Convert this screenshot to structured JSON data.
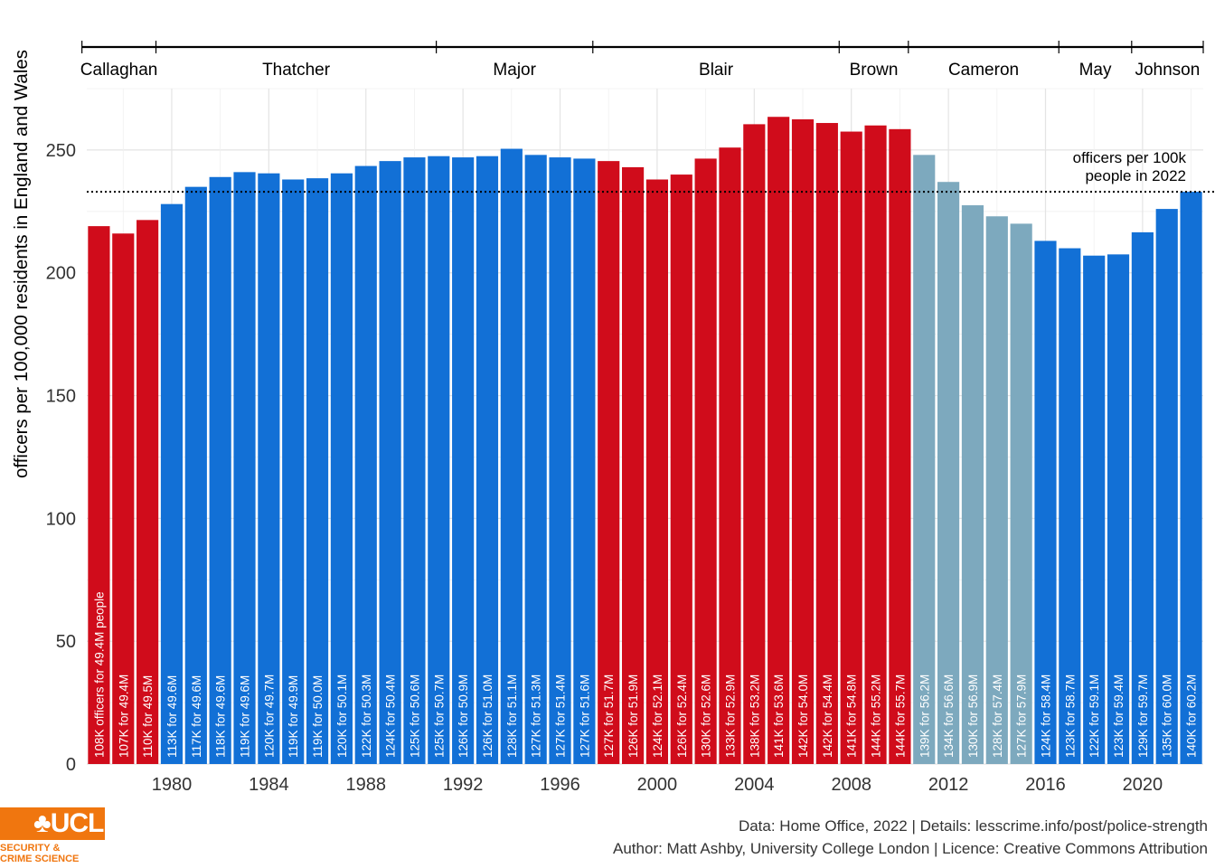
{
  "chart_data": {
    "type": "bar",
    "ylabel": "officers per 100,000 residents in England and Wales",
    "ylim": [
      0,
      275
    ],
    "yticks": [
      0,
      50,
      100,
      150,
      200,
      250
    ],
    "xticks": [
      "1980",
      "1984",
      "1988",
      "1992",
      "1996",
      "2000",
      "2004",
      "2008",
      "2012",
      "2016",
      "2020"
    ],
    "grid": true,
    "party_colors": {
      "Labour": "#d00c1b",
      "Conservative": "#1270d6",
      "Coalition": "#7da9be"
    },
    "years": [
      1977,
      1978,
      1979,
      1980,
      1981,
      1982,
      1983,
      1984,
      1985,
      1986,
      1987,
      1988,
      1989,
      1990,
      1991,
      1992,
      1993,
      1994,
      1995,
      1996,
      1997,
      1998,
      1999,
      2000,
      2001,
      2002,
      2003,
      2004,
      2005,
      2006,
      2007,
      2008,
      2009,
      2010,
      2011,
      2012,
      2013,
      2014,
      2015,
      2016,
      2017,
      2018,
      2019,
      2020,
      2021,
      2022
    ],
    "values": [
      219,
      216,
      221.5,
      228,
      235,
      239,
      241,
      240.5,
      238,
      238.5,
      240.5,
      243.5,
      245.5,
      247,
      247.5,
      247,
      247.5,
      250.5,
      248,
      247,
      246.5,
      245.5,
      243,
      238,
      240,
      246.5,
      251,
      260.5,
      263.5,
      262.5,
      261,
      257.5,
      260,
      258.5,
      248,
      237,
      227.5,
      223,
      220,
      213,
      210,
      207,
      207.5,
      216.5,
      226,
      233
    ],
    "party": [
      "Labour",
      "Labour",
      "Labour",
      "Conservative",
      "Conservative",
      "Conservative",
      "Conservative",
      "Conservative",
      "Conservative",
      "Conservative",
      "Conservative",
      "Conservative",
      "Conservative",
      "Conservative",
      "Conservative",
      "Conservative",
      "Conservative",
      "Conservative",
      "Conservative",
      "Conservative",
      "Conservative",
      "Labour",
      "Labour",
      "Labour",
      "Labour",
      "Labour",
      "Labour",
      "Labour",
      "Labour",
      "Labour",
      "Labour",
      "Labour",
      "Labour",
      "Labour",
      "Coalition",
      "Coalition",
      "Coalition",
      "Coalition",
      "Coalition",
      "Conservative",
      "Conservative",
      "Conservative",
      "Conservative",
      "Conservative",
      "Conservative",
      "Conservative"
    ],
    "labels": [
      "108K officers for 49.4M people",
      "107K for 49.4M",
      "110K for 49.5M",
      "113K for 49.6M",
      "117K for 49.6M",
      "118K for 49.6M",
      "119K for 49.6M",
      "120K for 49.7M",
      "119K for 49.9M",
      "119K for 50.0M",
      "120K for 50.1M",
      "122K for 50.3M",
      "124K for 50.4M",
      "125K for 50.6M",
      "125K for 50.7M",
      "126K for 50.9M",
      "126K for 51.0M",
      "128K for 51.1M",
      "127K for 51.3M",
      "127K for 51.4M",
      "127K for 51.6M",
      "127K for 51.7M",
      "126K for 51.9M",
      "124K for 52.1M",
      "126K for 52.4M",
      "130K for 52.6M",
      "133K for 52.9M",
      "138K for 53.2M",
      "141K for 53.6M",
      "142K for 54.0M",
      "142K for 54.4M",
      "141K for 54.8M",
      "144K for 55.2M",
      "144K for 55.7M",
      "139K for 56.2M",
      "134K for 56.6M",
      "130K for 56.9M",
      "128K for 57.4M",
      "127K for 57.9M",
      "124K for 58.4M",
      "123K for 58.7M",
      "122K for 59.1M",
      "123K for 59.4M",
      "129K for 59.7M",
      "135K for 60.0M",
      "140K for 60.2M"
    ],
    "reference_line": {
      "value": 233,
      "label": [
        "officers per 100k",
        "people in 2022"
      ]
    },
    "prime_ministers": [
      {
        "name": "Callaghan",
        "start": 1976.3,
        "end": 1979.35
      },
      {
        "name": "Thatcher",
        "start": 1979.35,
        "end": 1990.9
      },
      {
        "name": "Major",
        "start": 1990.9,
        "end": 1997.35
      },
      {
        "name": "Blair",
        "start": 1997.35,
        "end": 2007.5
      },
      {
        "name": "Brown",
        "start": 2007.5,
        "end": 2010.35
      },
      {
        "name": "Cameron",
        "start": 2010.35,
        "end": 2016.55
      },
      {
        "name": "May",
        "start": 2016.55,
        "end": 2019.55
      },
      {
        "name": "Johnson",
        "start": 2019.55,
        "end": 2022.5
      }
    ]
  },
  "footer": {
    "line1": "Data: Home Office, 2022 |  Details: lesscrime.info/post/police-strength",
    "line2": "Author: Matt Ashby, University College London |  Licence: Creative Commons Attribution"
  },
  "logo": {
    "word": "♣UCL",
    "line1": "SECURITY &",
    "line2": "CRIME SCIENCE"
  }
}
